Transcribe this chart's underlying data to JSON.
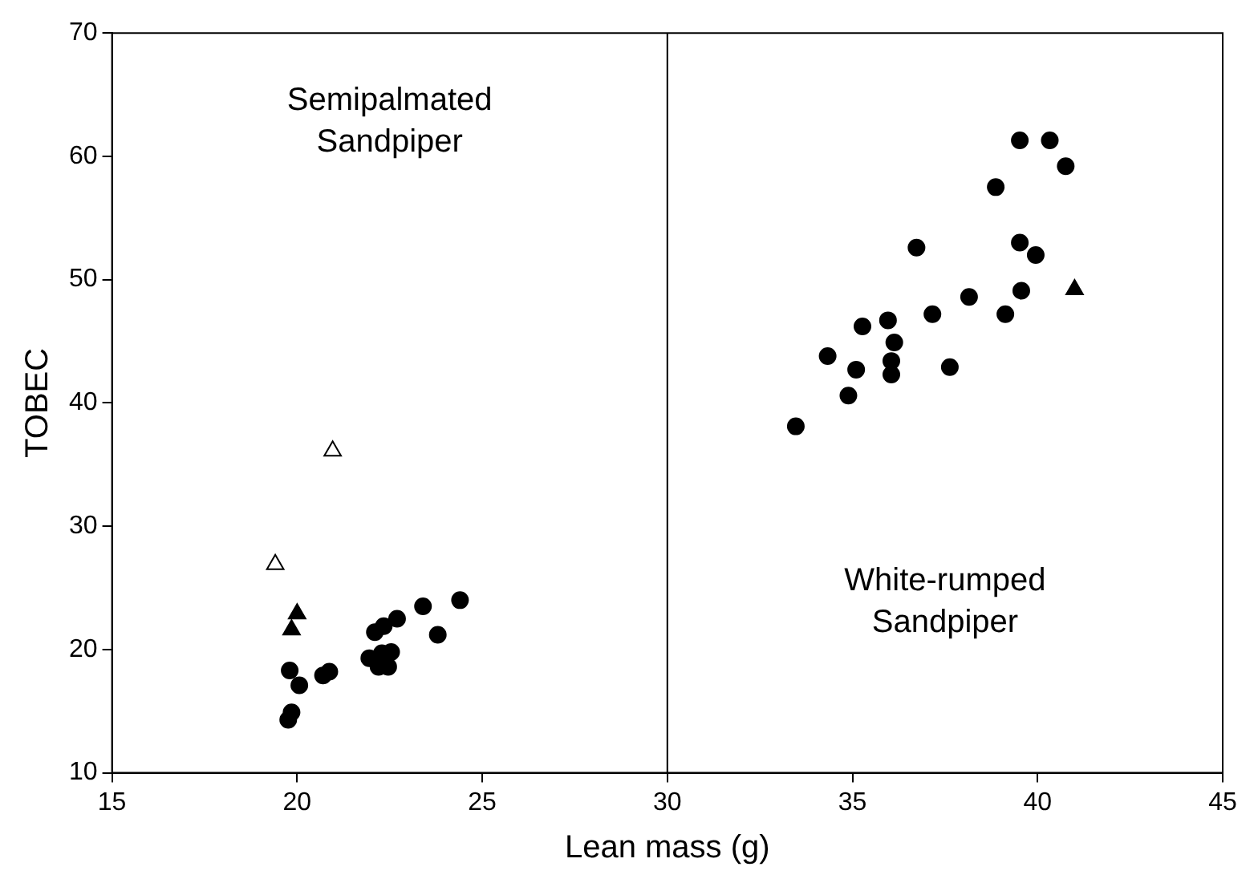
{
  "chart_data": {
    "type": "scatter",
    "xlabel": "Lean mass (g)",
    "ylabel": "TOBEC",
    "xlim": [
      15,
      45
    ],
    "xticks": [
      15,
      20,
      25,
      30,
      35,
      40,
      45
    ],
    "ylim": [
      10,
      70
    ],
    "yticks": [
      10,
      20,
      30,
      40,
      50,
      60,
      70
    ],
    "grid": false,
    "legend": false,
    "ref_lines": [
      {
        "axis": "x",
        "value": 30,
        "color": "#000000"
      }
    ],
    "annotations": [
      "Semipalmated Sandpiper",
      "White-rumped Sandpiper"
    ],
    "series": [
      {
        "color": "#000000",
        "marker": "circle",
        "x": [
          19.8,
          20.06,
          19.85,
          19.76,
          20.7,
          20.87,
          22.34,
          22.1,
          22.7,
          23.4,
          24.4,
          23.8,
          21.95,
          22.29,
          22.54,
          22.2,
          22.46,
          39.52,
          40.33,
          40.76,
          38.87,
          36.73,
          39.52,
          39.95,
          39.56,
          38.15,
          37.16,
          39.13,
          35.96,
          35.27,
          36.13,
          34.33,
          36.05,
          35.1,
          36.05,
          37.63,
          34.89,
          33.47
        ],
        "values": [
          18.3,
          17.1,
          14.9,
          14.3,
          17.9,
          18.2,
          21.9,
          21.4,
          22.5,
          23.5,
          24.0,
          21.2,
          19.3,
          19.7,
          19.8,
          18.6,
          18.6,
          61.3,
          61.3,
          59.2,
          57.5,
          52.6,
          53.0,
          52.0,
          49.1,
          48.6,
          47.2,
          47.2,
          46.7,
          46.2,
          44.9,
          43.8,
          43.4,
          42.7,
          42.3,
          42.9,
          40.6,
          38.1
        ]
      },
      {
        "color": "#000000",
        "marker": "triangle",
        "x": [
          20.0,
          19.85,
          41.0
        ],
        "values": [
          22.9,
          21.6,
          49.2
        ]
      },
      {
        "color": "#ffffff",
        "marker": "triangle",
        "x": [
          20.96,
          19.41
        ],
        "values": [
          36.1,
          26.9
        ]
      }
    ]
  }
}
